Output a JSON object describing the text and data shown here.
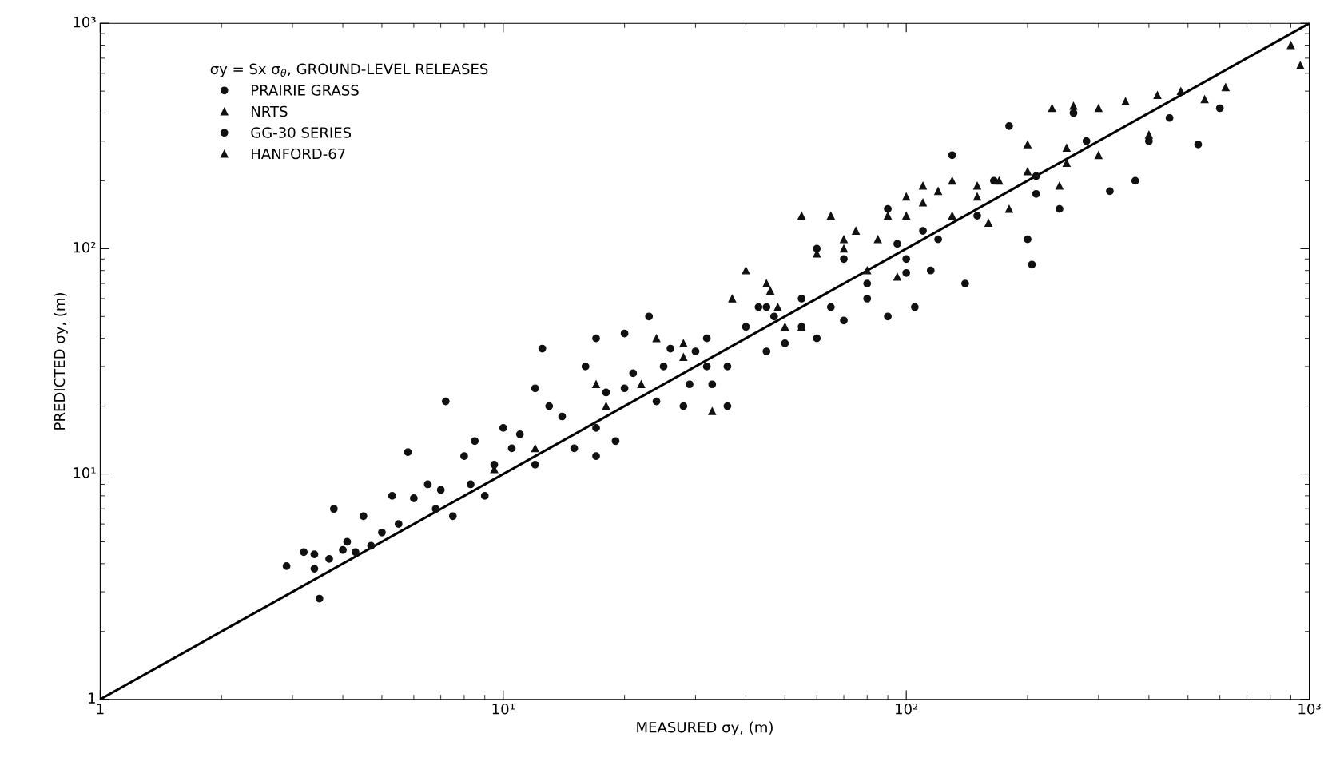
{
  "chart_data": {
    "type": "scatter",
    "xlabel": "MEASURED σy, (m)",
    "ylabel": "PREDICTED σy, (m)",
    "legend_title": "σy = Sx σ$_{θ}$, GROUND-LEVEL RELEASES",
    "log": "xy",
    "grid": false,
    "legend": "top left",
    "xlim": [
      1,
      1000
    ],
    "ylim": [
      1,
      1000
    ],
    "xticks": [
      1,
      {
        "value": 10,
        "label": "10¹"
      },
      {
        "value": 100,
        "label": "10²"
      },
      {
        "value": 1000,
        "label": "10³"
      }
    ],
    "yticks": [
      1,
      {
        "value": 10,
        "label": "10¹"
      },
      {
        "value": 100,
        "label": "10²"
      },
      {
        "value": 1000,
        "label": "10³"
      }
    ],
    "series": [
      {
        "name": "PRAIRIE GRASS",
        "color": "#111111",
        "marker": "circle",
        "x": [
          2.9,
          3.2,
          3.4,
          3.5,
          3.4,
          3.7,
          3.8,
          4.0,
          4.1,
          4.3,
          4.5,
          4.7,
          5.0,
          5.3,
          5.5,
          5.8,
          6.0,
          6.5,
          6.8,
          7.0,
          7.2,
          7.5,
          8.0,
          8.3,
          8.5,
          9.0,
          9.5,
          10,
          10.5,
          11,
          12,
          12.5,
          13,
          14,
          15,
          16,
          17,
          18,
          19,
          20,
          21,
          23,
          24,
          26,
          28,
          30,
          33,
          36,
          40,
          45,
          50,
          55,
          60,
          65,
          70,
          80,
          90,
          105,
          115,
          205,
          210,
          100,
          45,
          32,
          17,
          12
        ],
        "values": [
          3.9,
          4.5,
          4.4,
          2.8,
          3.8,
          4.2,
          7.0,
          4.6,
          5.0,
          4.5,
          6.5,
          4.8,
          5.5,
          8.0,
          6.0,
          12.5,
          7.8,
          9.0,
          7.0,
          8.5,
          21,
          6.5,
          12,
          9.0,
          14,
          8.0,
          11,
          16,
          13,
          15,
          24,
          36,
          20,
          18,
          13,
          30,
          40,
          23,
          14,
          42,
          28,
          50,
          21,
          36,
          20,
          35,
          25,
          30,
          45,
          55,
          38,
          45,
          40,
          55,
          48,
          60,
          50,
          55,
          80,
          85,
          175,
          78,
          35,
          30,
          16,
          11
        ]
      },
      {
        "name": "NRTS",
        "color": "#111111",
        "marker": "triangle",
        "x": [
          9.5,
          12,
          17,
          24,
          28,
          33,
          40,
          46,
          55,
          60,
          70,
          80,
          90,
          100,
          110,
          120,
          130,
          150,
          170,
          200,
          250,
          300,
          350,
          420,
          480,
          550,
          620,
          900,
          950,
          400,
          250,
          180
        ],
        "values": [
          10.5,
          13,
          25,
          40,
          38,
          19,
          80,
          65,
          45,
          95,
          110,
          80,
          140,
          170,
          160,
          180,
          140,
          190,
          200,
          290,
          240,
          420,
          450,
          480,
          500,
          460,
          520,
          800,
          650,
          320,
          280,
          150
        ]
      },
      {
        "name": "GG-30 SERIES",
        "color": "#111111",
        "marker": "circle",
        "x": [
          17,
          20,
          25,
          29,
          32,
          36,
          43,
          47,
          55,
          60,
          70,
          80,
          90,
          110,
          120,
          130,
          140,
          150,
          180,
          200,
          210,
          240,
          260,
          280,
          320,
          370,
          400,
          450,
          530,
          600,
          165,
          100,
          95
        ],
        "values": [
          12,
          24,
          30,
          25,
          40,
          20,
          55,
          50,
          60,
          100,
          90,
          70,
          150,
          120,
          110,
          260,
          70,
          140,
          350,
          110,
          210,
          150,
          400,
          300,
          180,
          200,
          300,
          380,
          290,
          420,
          200,
          90,
          105
        ]
      },
      {
        "name": "HANFORD-67",
        "color": "#111111",
        "marker": "triangle",
        "x": [
          18,
          22,
          28,
          37,
          45,
          50,
          55,
          65,
          75,
          85,
          95,
          100,
          110,
          130,
          150,
          160,
          200,
          230,
          260,
          240,
          300,
          48,
          70
        ],
        "values": [
          20,
          25,
          33,
          60,
          70,
          45,
          140,
          140,
          120,
          110,
          75,
          140,
          190,
          200,
          170,
          130,
          220,
          420,
          430,
          190,
          260,
          55,
          100
        ]
      },
      {
        "type": "line",
        "color": "#000000",
        "x": [
          1,
          1000
        ],
        "values": [
          1,
          1000
        ]
      }
    ]
  }
}
